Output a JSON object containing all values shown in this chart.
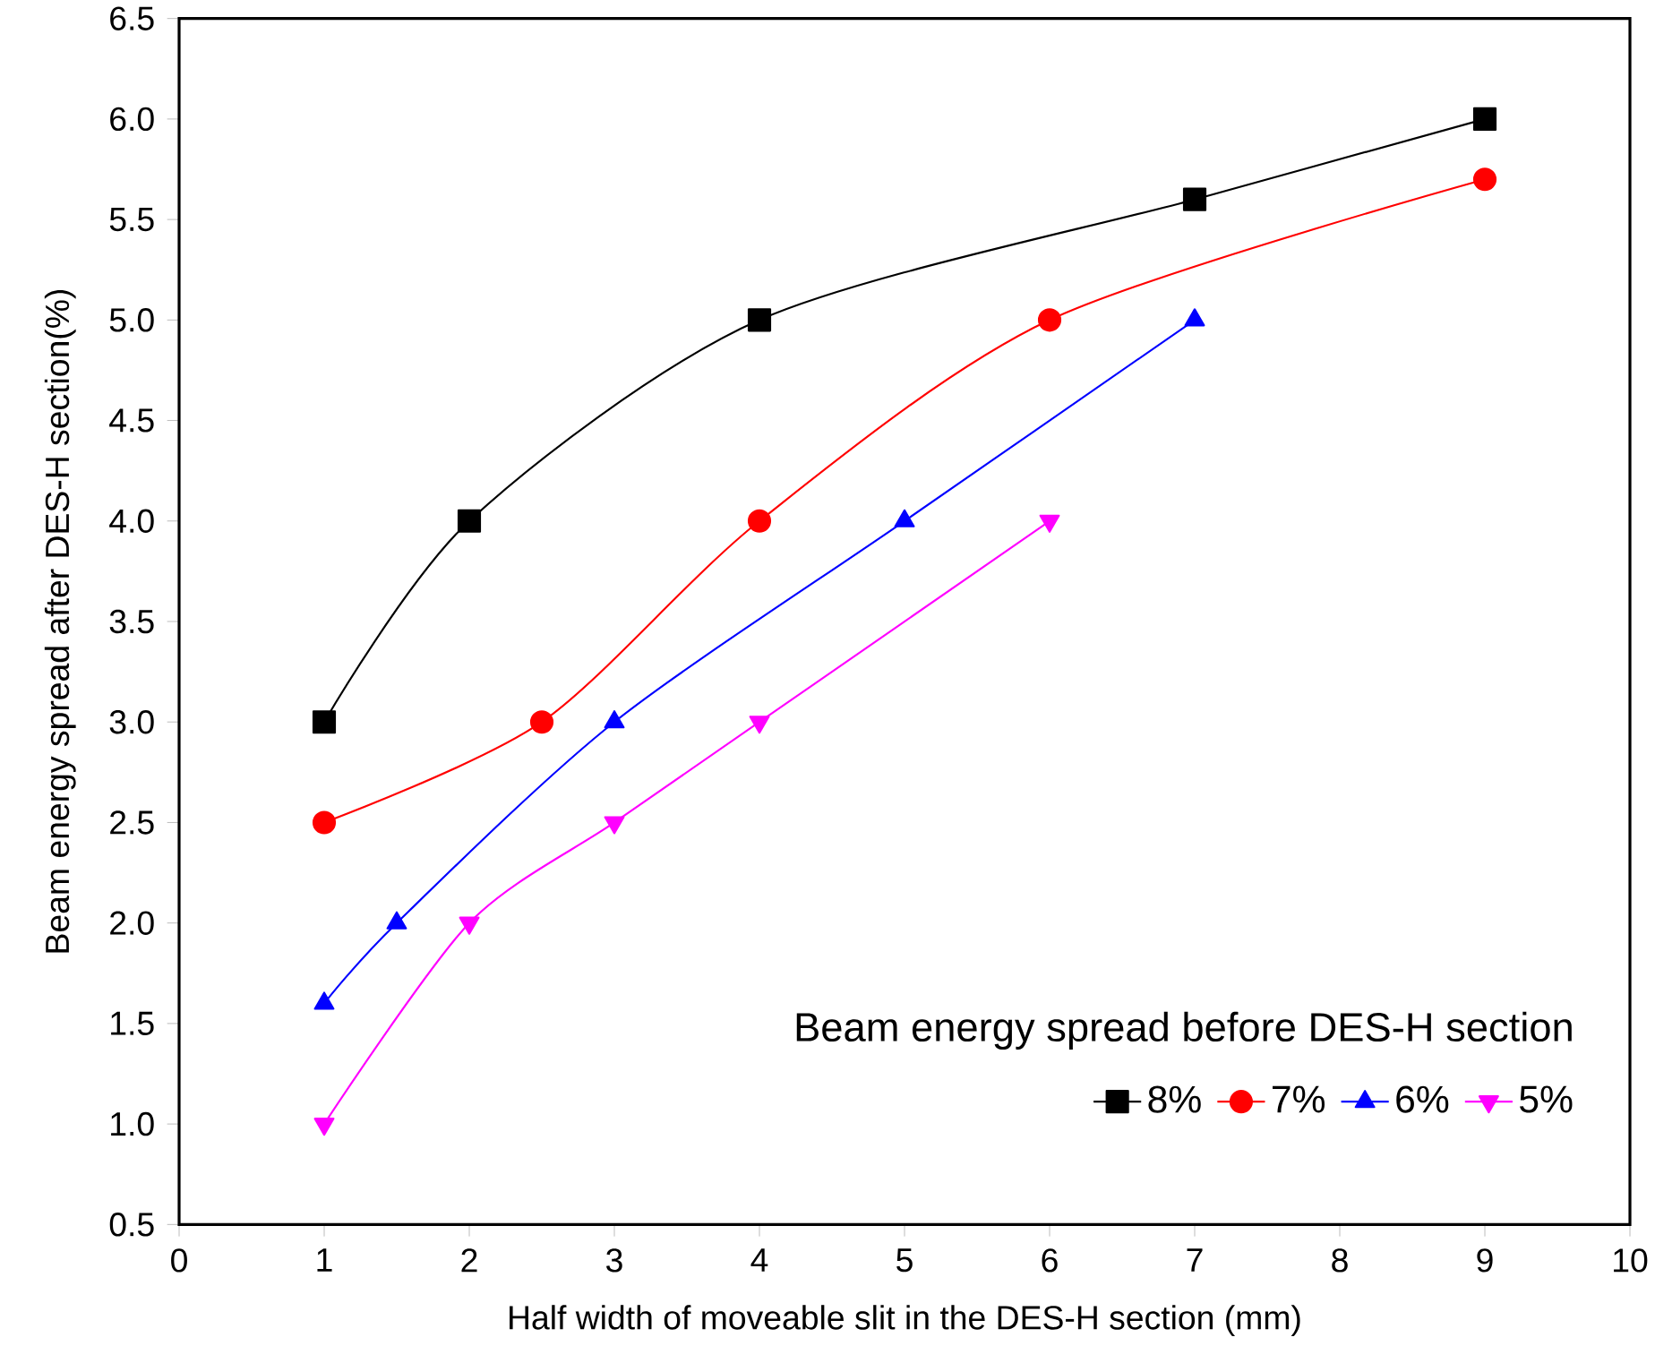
{
  "chart_data": {
    "type": "line",
    "xlabel": "Half width of moveable slit in the DES-H section (mm)",
    "ylabel": "Beam energy spread after DES-H section(%)",
    "legend_title": "Beam energy spread before DES-H section",
    "legend": "bottom right",
    "grid": false,
    "line_style": "solid",
    "xlim": [
      0,
      10
    ],
    "xticks": [
      0,
      1,
      2,
      3,
      4,
      5,
      6,
      7,
      8,
      9,
      10
    ],
    "ylim": [
      0.5,
      6.5
    ],
    "yticks": [
      {
        "value": 0.5,
        "label": "0.5"
      },
      {
        "value": 1,
        "label": "1.0"
      },
      {
        "value": 1.5,
        "label": "1.5"
      },
      {
        "value": 2,
        "label": "2.0"
      },
      {
        "value": 2.5,
        "label": "2.5"
      },
      {
        "value": 3,
        "label": "3.0"
      },
      {
        "value": 3.5,
        "label": "3.5"
      },
      {
        "value": 4,
        "label": "4.0"
      },
      {
        "value": 4.5,
        "label": "4.5"
      },
      {
        "value": 5,
        "label": "5.0"
      },
      {
        "value": 5.5,
        "label": "5.5"
      },
      {
        "value": 6,
        "label": "6.0"
      },
      {
        "value": 6.5,
        "label": "6.5"
      }
    ],
    "series": [
      {
        "name": "8%",
        "color": "#000000",
        "marker": "square",
        "x": [
          1,
          2,
          4,
          7,
          9
        ],
        "values": [
          3.0,
          4.0,
          5.0,
          5.6,
          6.0
        ]
      },
      {
        "name": "7%",
        "color": "#ff0000",
        "marker": "circle",
        "x": [
          1,
          2.5,
          4,
          6,
          9
        ],
        "values": [
          2.5,
          3.0,
          4.0,
          5.0,
          5.7
        ]
      },
      {
        "name": "6%",
        "color": "#0000ff",
        "marker": "triangle",
        "x": [
          1,
          1.5,
          3,
          5,
          7
        ],
        "values": [
          1.6,
          2.0,
          3.0,
          4.0,
          5.0
        ]
      },
      {
        "name": "5%",
        "color": "#ff00ff",
        "marker": "triangle-down",
        "x": [
          1,
          2,
          3,
          4,
          6
        ],
        "values": [
          1.0,
          2.0,
          2.5,
          3.0,
          4.0
        ]
      }
    ]
  }
}
